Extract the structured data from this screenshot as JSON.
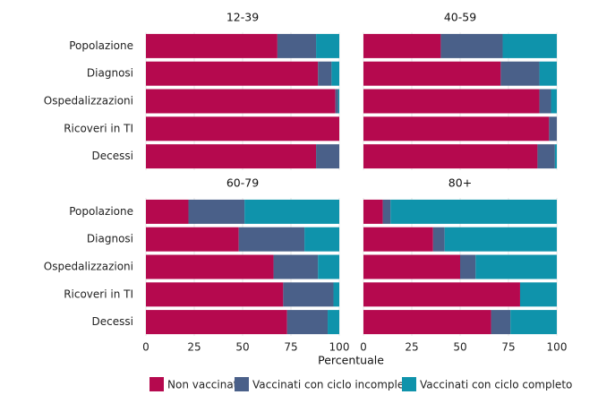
{
  "chart_data": {
    "type": "bar",
    "orientation": "horizontal",
    "stacked": true,
    "grid": true,
    "legend": "bottom",
    "x_label": "Percentuale",
    "categories": [
      "Popolazione",
      "Diagnosi",
      "Ospedalizzazioni",
      "Ricoveri in TI",
      "Decessi"
    ],
    "xlim": [
      0,
      100
    ],
    "xticks": [
      0,
      25,
      50,
      75,
      100
    ],
    "series": [
      {
        "name": "Non vaccinati",
        "color": "#b5094e"
      },
      {
        "name": "Vaccinati con ciclo incompleto",
        "color": "#4a6089"
      },
      {
        "name": "Vaccinati con ciclo completo",
        "color": "#0f93ab"
      }
    ],
    "facets": [
      {
        "title": "12-39",
        "series": [
          {
            "values": [
              68,
              89,
              98,
              100,
              88
            ]
          },
          {
            "values": [
              20,
              7,
              1.5,
              0,
              12
            ]
          },
          {
            "values": [
              12,
              4,
              0.5,
              0,
              0
            ]
          }
        ]
      },
      {
        "title": "40-59",
        "series": [
          {
            "values": [
              40,
              71,
              91,
              96,
              90
            ]
          },
          {
            "values": [
              32,
              20,
              6,
              4,
              9
            ]
          },
          {
            "values": [
              28,
              9,
              3,
              0,
              1
            ]
          }
        ]
      },
      {
        "title": "60-79",
        "series": [
          {
            "values": [
              22,
              48,
              66,
              71,
              73
            ]
          },
          {
            "values": [
              29,
              34,
              23,
              26,
              21
            ]
          },
          {
            "values": [
              49,
              18,
              11,
              3,
              6
            ]
          }
        ]
      },
      {
        "title": "80+",
        "series": [
          {
            "values": [
              10,
              36,
              50,
              81,
              66
            ]
          },
          {
            "values": [
              4,
              6,
              8,
              0,
              10
            ]
          },
          {
            "values": [
              86,
              58,
              42,
              19,
              24
            ]
          }
        ]
      }
    ]
  }
}
